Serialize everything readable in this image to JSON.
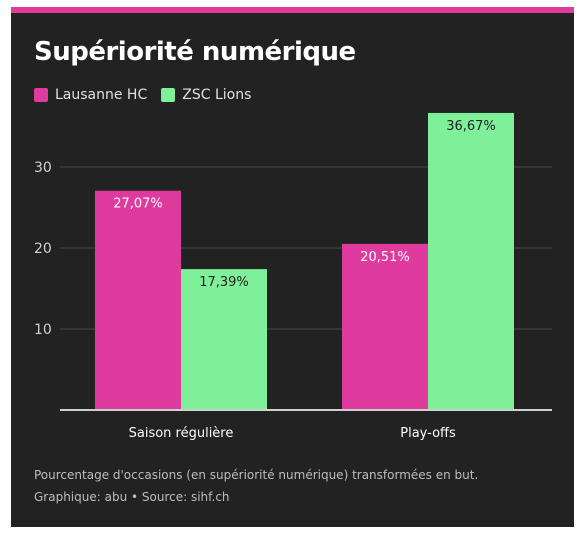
{
  "title": "Supériorité numérique",
  "colors": {
    "accent": "#df3a9e",
    "lausanne": "#df3a9e",
    "zsc": "#7ef09a",
    "background": "#222222"
  },
  "chart_data": {
    "type": "bar",
    "categories": [
      "Saison régulière",
      "Play-offs"
    ],
    "series": [
      {
        "name": "Lausanne HC",
        "values": [
          27.07,
          20.51
        ],
        "labels": [
          "27,07%",
          "20,51%"
        ]
      },
      {
        "name": "ZSC Lions",
        "values": [
          17.39,
          36.67
        ],
        "labels": [
          "17,39%",
          "36,67%"
        ]
      }
    ],
    "yticks": [
      10,
      20,
      30
    ],
    "ylim": [
      0,
      37
    ],
    "grid": true,
    "legend": "top-left"
  },
  "note": "Pourcentage d'occasions (en supériorité numérique) transformées en but.",
  "credit": "Graphique: abu • Source: sihf.ch"
}
